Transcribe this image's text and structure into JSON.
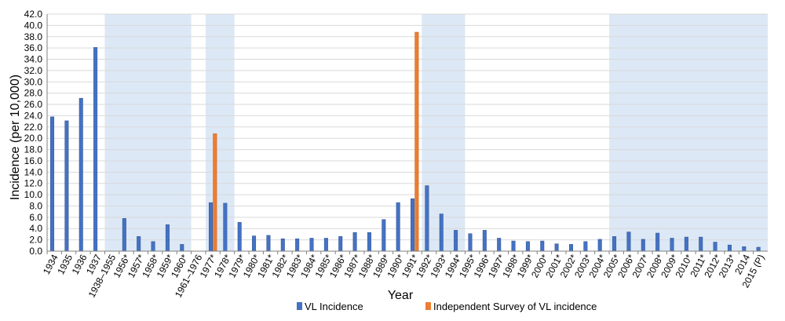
{
  "chart_data": {
    "type": "bar",
    "xlabel": "Year",
    "ylabel": "Incidence (per 10,000)",
    "ylim": [
      0,
      42
    ],
    "y_ticks": [
      "0.0",
      "2.0",
      "4.0",
      "6.0",
      "8.0",
      "10.0",
      "12.0",
      "14.0",
      "16.0",
      "18.0",
      "20.0",
      "22.0",
      "24.0",
      "26.0",
      "28.0",
      "30.0",
      "32.0",
      "34.0",
      "36.0",
      "38.0",
      "40.0",
      "42.0"
    ],
    "grid": true,
    "legend_position": "bottom",
    "categories": [
      "1934",
      "1935",
      "1936",
      "1937",
      "1938–1955",
      "1956*",
      "1957*",
      "1958*",
      "1959*",
      "1960*",
      "1961–1976",
      "1977*",
      "1978*",
      "1979*",
      "1980*",
      "1981*",
      "1982*",
      "1983*",
      "1984*",
      "1985*",
      "1986*",
      "1987*",
      "1988*",
      "1989*",
      "1990*",
      "1991*",
      "1992*",
      "1993*",
      "1994*",
      "1995*",
      "1996*",
      "1997*",
      "1998*",
      "1999*",
      "2000*",
      "2001*",
      "2002*",
      "2003*",
      "2004*",
      "2005*",
      "2006*",
      "2007*",
      "2008*",
      "2009*",
      "2010*",
      "2011*",
      "2012*",
      "2013*",
      "2014",
      "2015 (P)"
    ],
    "series": [
      {
        "name": "VL Incidence",
        "color": "#4472c4",
        "values": [
          23.8,
          23.1,
          27.1,
          36.1,
          null,
          5.8,
          2.6,
          1.7,
          4.7,
          1.2,
          null,
          8.6,
          8.5,
          5.1,
          2.7,
          2.8,
          2.2,
          2.2,
          2.3,
          2.3,
          2.6,
          3.3,
          3.3,
          5.6,
          8.6,
          9.3,
          11.6,
          6.6,
          3.7,
          3.1,
          3.7,
          2.3,
          1.8,
          1.7,
          1.8,
          1.3,
          1.2,
          1.7,
          2.1,
          2.6,
          3.4,
          2.1,
          3.2,
          2.3,
          2.5,
          2.5,
          1.6,
          1.1,
          0.8,
          0.7
        ]
      },
      {
        "name": "Independent Survey of VL incidence",
        "color": "#ed7d31",
        "values": [
          null,
          null,
          null,
          null,
          null,
          null,
          null,
          null,
          null,
          null,
          null,
          20.8,
          null,
          null,
          null,
          null,
          null,
          null,
          null,
          null,
          null,
          null,
          null,
          null,
          null,
          38.8,
          null,
          null,
          null,
          null,
          null,
          null,
          null,
          null,
          null,
          null,
          null,
          null,
          null,
          null,
          null,
          null,
          null,
          null,
          null,
          null,
          null,
          null,
          null,
          null
        ]
      }
    ],
    "shaded_ranges": [
      {
        "from": "1938–1955",
        "to": "1960*",
        "color": "#dce8f5"
      },
      {
        "from": "1977*",
        "to": "1978*",
        "color": "#dce8f5"
      },
      {
        "from": "1992*",
        "to": "1994*",
        "color": "#dce8f5"
      },
      {
        "from": "2005*",
        "to": "2015 (P)",
        "color": "#dce8f5"
      }
    ]
  }
}
